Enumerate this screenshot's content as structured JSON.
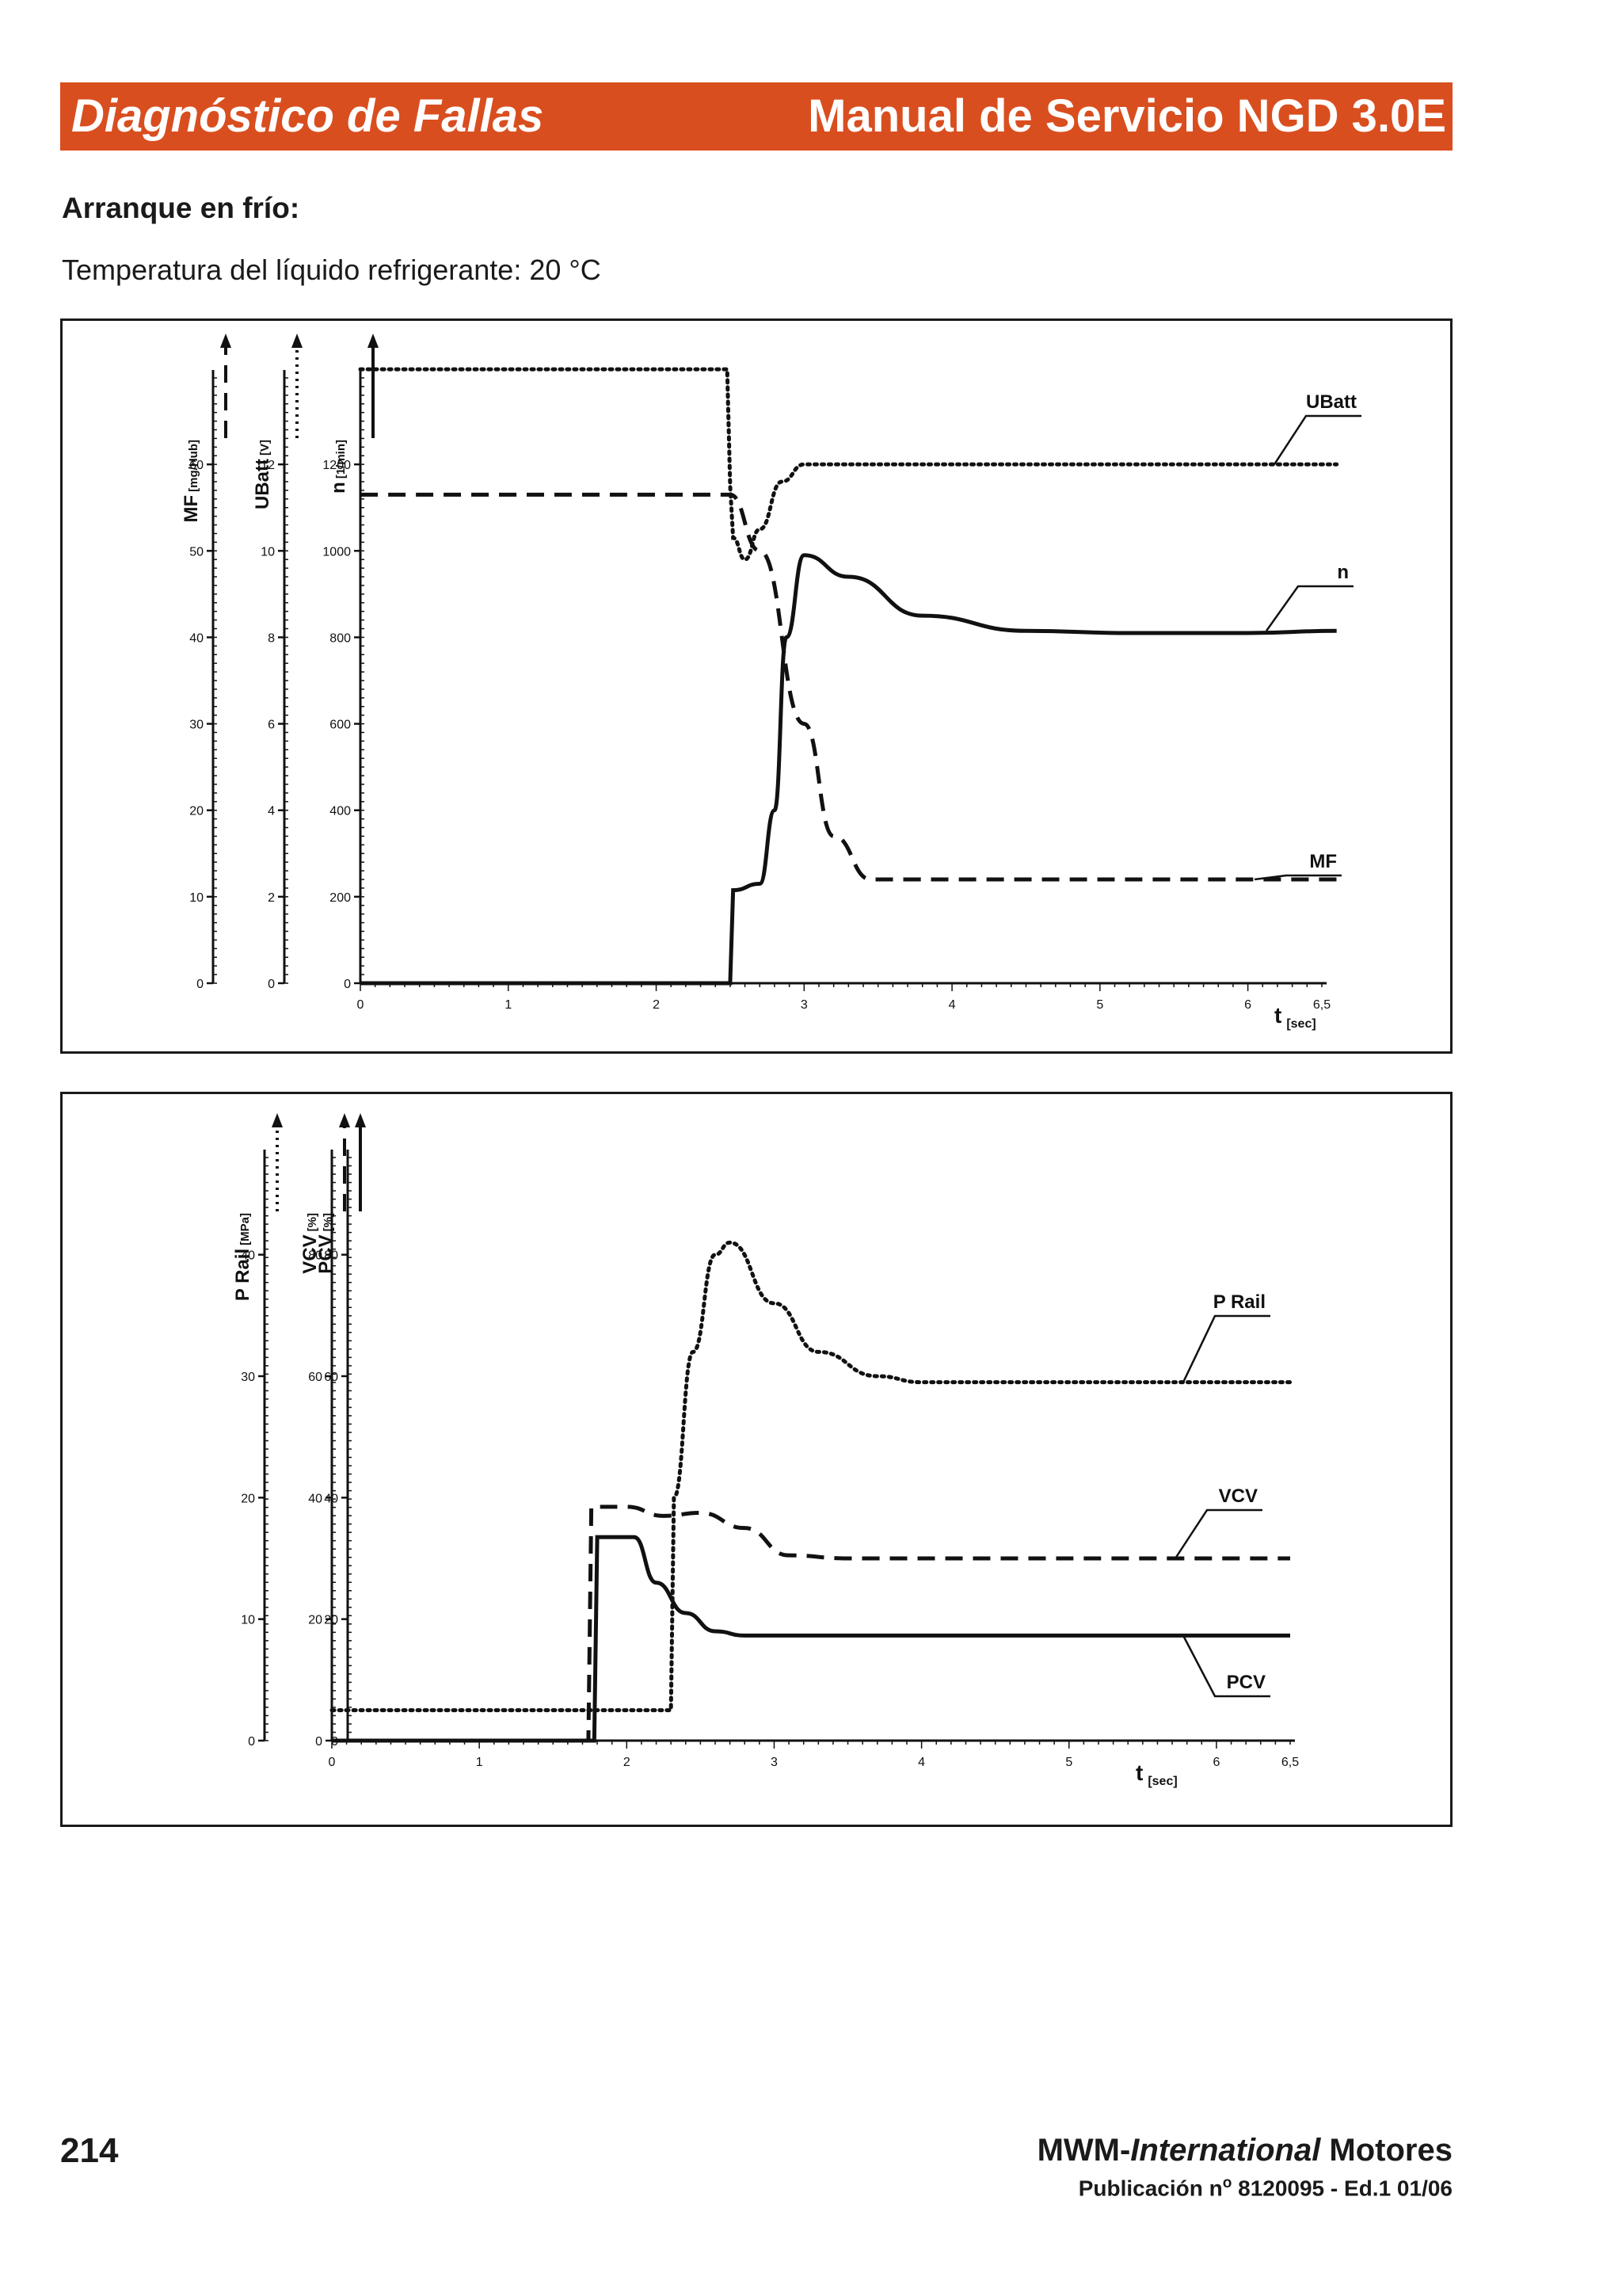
{
  "header": {
    "left_title": "Diagnóstico de Fallas",
    "right_title": "Manual de Servicio NGD 3.0E",
    "color": "#d94e1f"
  },
  "section": {
    "title": "Arranque en frío:",
    "subtitle": "Temperatura del líquido refrigerante: 20 °C"
  },
  "chart_data": [
    {
      "type": "line",
      "x_axis": {
        "label": "t",
        "unit": "[sec]",
        "range": [
          0,
          6.5
        ],
        "ticks": [
          "0",
          "1",
          "2",
          "3",
          "4",
          "5",
          "6",
          "6,5"
        ]
      },
      "y_axes": [
        {
          "label": "MF",
          "unit": "[mg/Hub]",
          "range": [
            0,
            70
          ],
          "ticks": [
            "0",
            "10",
            "20",
            "30",
            "40",
            "50",
            "60"
          ]
        },
        {
          "label": "UBatt",
          "unit": "[V]",
          "range": [
            0,
            14
          ],
          "ticks": [
            "0",
            "2",
            "4",
            "6",
            "8",
            "10",
            "12"
          ]
        },
        {
          "label": "n",
          "unit": "[1/min]",
          "range": [
            0,
            1400
          ],
          "ticks": [
            "0",
            "200",
            "400",
            "600",
            "800",
            "1000",
            "1200"
          ]
        }
      ],
      "series": [
        {
          "name": "UBatt",
          "style": "dotted",
          "axis": "UBatt",
          "points": [
            [
              0,
              14.2
            ],
            [
              2.48,
              14.2
            ],
            [
              2.5,
              11.5
            ],
            [
              2.52,
              10.3
            ],
            [
              2.6,
              9.8
            ],
            [
              2.7,
              10.5
            ],
            [
              2.85,
              11.6
            ],
            [
              3.0,
              12.0
            ],
            [
              6.6,
              12.0
            ]
          ]
        },
        {
          "name": "n",
          "style": "solid",
          "axis": "n",
          "points": [
            [
              0,
              0
            ],
            [
              2.5,
              0
            ],
            [
              2.52,
              215
            ],
            [
              2.7,
              230
            ],
            [
              2.8,
              400
            ],
            [
              2.88,
              800
            ],
            [
              3.0,
              990
            ],
            [
              3.3,
              940
            ],
            [
              3.8,
              850
            ],
            [
              4.5,
              815
            ],
            [
              5.2,
              810
            ],
            [
              6.0,
              810
            ],
            [
              6.6,
              815
            ]
          ]
        },
        {
          "name": "MF",
          "style": "dashed",
          "axis": "MF",
          "points": [
            [
              0,
              56.5
            ],
            [
              2.5,
              56.5
            ],
            [
              2.7,
              50
            ],
            [
              3.0,
              30
            ],
            [
              3.2,
              17
            ],
            [
              3.45,
              12
            ],
            [
              6.6,
              12
            ]
          ]
        }
      ]
    },
    {
      "type": "line",
      "x_axis": {
        "label": "t",
        "unit": "[sec]",
        "range": [
          0,
          6.5
        ],
        "ticks": [
          "0",
          "1",
          "2",
          "3",
          "4",
          "5",
          "6",
          "6,5"
        ]
      },
      "y_axes": [
        {
          "label": "P Rail",
          "unit": "[MPa]",
          "range": [
            0,
            48
          ],
          "ticks": [
            "0",
            "10",
            "20",
            "30",
            "40"
          ]
        },
        {
          "label": "VCV",
          "unit": "[%]",
          "range": [
            0,
            96
          ],
          "ticks": [
            "0",
            "20",
            "40",
            "60",
            "80"
          ]
        },
        {
          "label": "PCV",
          "unit": "[%]",
          "range": [
            0,
            96
          ],
          "ticks": [
            "0",
            "20",
            "40",
            "60",
            "80"
          ]
        }
      ],
      "series": [
        {
          "name": "P Rail",
          "style": "dotted",
          "axis": "P Rail",
          "points": [
            [
              0,
              2.5
            ],
            [
              2.3,
              2.5
            ],
            [
              2.32,
              20
            ],
            [
              2.45,
              32
            ],
            [
              2.6,
              40
            ],
            [
              2.7,
              41
            ],
            [
              3.0,
              36
            ],
            [
              3.3,
              32
            ],
            [
              3.7,
              30
            ],
            [
              4.0,
              29.5
            ],
            [
              6.5,
              29.5
            ]
          ]
        },
        {
          "name": "VCV",
          "style": "dashed",
          "axis": "VCV",
          "points": [
            [
              0,
              0
            ],
            [
              1.74,
              0
            ],
            [
              1.76,
              38.5
            ],
            [
              2.0,
              38.5
            ],
            [
              2.25,
              37
            ],
            [
              2.5,
              37.5
            ],
            [
              2.8,
              35
            ],
            [
              3.1,
              30.5
            ],
            [
              3.5,
              30
            ],
            [
              6.5,
              30
            ]
          ]
        },
        {
          "name": "PCV",
          "style": "solid",
          "axis": "PCV",
          "points": [
            [
              0,
              0
            ],
            [
              1.78,
              0
            ],
            [
              1.8,
              33.5
            ],
            [
              2.05,
              33.5
            ],
            [
              2.2,
              26
            ],
            [
              2.4,
              21
            ],
            [
              2.6,
              18
            ],
            [
              2.8,
              17.3
            ],
            [
              6.5,
              17.3
            ]
          ]
        }
      ]
    }
  ],
  "footer": {
    "page_number": "214",
    "brand_prefix": "MWM-",
    "brand_italic": "International",
    "brand_suffix": " Motores",
    "pub_prefix": "Publicación n",
    "pub_sup": "o",
    "pub_suffix": " 8120095 - Ed.1 01/06"
  }
}
